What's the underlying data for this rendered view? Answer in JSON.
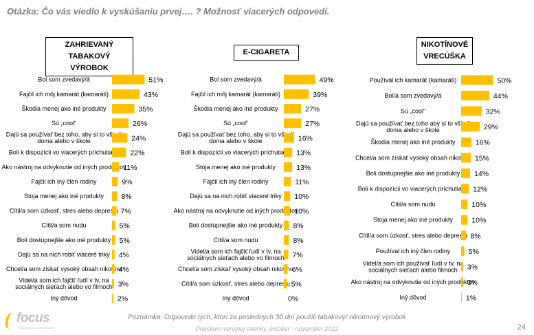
{
  "question": "Otázka: Čo vás viedlo k vyskúšaniu prvej…. ? Možnosť viacerých odpovedí.",
  "note": "Poznámka: Odpovede tých, ktorí za posledných 30 dní použili tabakový/ nikotínový výrobok",
  "source": "Prieskum verejnej mienky, október - november 2022",
  "page_number": "24",
  "logo": {
    "text": "focus",
    "subtext": "Marketing & Social Research"
  },
  "colors": {
    "bar": "#FFC000"
  },
  "chart_data": [
    {
      "type": "bar",
      "orientation": "horizontal",
      "title": "ZAHRIEVANÝ TABAKOVÝ VÝROBOK",
      "categories": [
        "Bol som zvedavý/á",
        "Fajčil ich môj kamarát (kamaráti)",
        "Škodia menej ako iné produkty",
        "Sú „cool“",
        "Dajú sa používať bez toho, aby si to všimli doma alebo v škole",
        "Boli k dispozícii vo viacerých príchutiach",
        "Ako nástroj na odvyknutie od iných produktov",
        "Fajčil ich iný člen rodiny",
        "Stoja menej ako iné produkty",
        "Cítil/a som úzkosť, stres alebo depresiu",
        "Cítil/a som nudu",
        "Boli dostupnejšie ako iné produkty",
        "Dajú sa na nich robiť viaceré triky",
        "Chcel/a som získať vysoký obsah nikotínu",
        "Videl/a som ich fajčiť ľudí v tv, na sociálnych sieťach alebo vo filmoch",
        "Iný dôvod"
      ],
      "values": [
        51,
        43,
        35,
        26,
        24,
        22,
        11,
        9,
        8,
        7,
        5,
        5,
        4,
        4,
        3,
        2
      ],
      "value_labels": [
        "51%",
        "43%",
        "35%",
        "26%",
        "24%",
        "22%",
        "11%",
        "9%",
        "8%",
        "7%",
        "5%",
        "5%",
        "4%",
        "4%",
        "3%",
        "2%"
      ],
      "xlim": [
        0,
        100
      ]
    },
    {
      "type": "bar",
      "orientation": "horizontal",
      "title": "E-CIGARETA",
      "categories": [
        "Bol som zvedavý/á",
        "Fajčil ich môj kamarát (kamaráti)",
        "Škodia menej ako iné produkty",
        "Sú „cool“",
        "Dajú sa používať bez toho, aby si to všimli doma alebo v škole",
        "Boli k dispozícii vo viacerých príchutiach",
        "Stoja menej ako iné produkty",
        "Fajčil ich iný člen rodiny",
        "Dajú sa na nich robiť viaceré triky",
        "Ako nástroj na odvyknutie od iných produktov",
        "Boli dostupnejšie ako iné produkty",
        "Cítil/a som nudu",
        "Videl/a som ich fajčiť ľudí v tv, na sociálnych sieťach alebo vo filmoch",
        "Chcel/a som získať vysoký obsah nikotínu",
        "Cítil/a som úzkosť, stres alebo depresiu",
        "Iný dôvod"
      ],
      "values": [
        49,
        39,
        27,
        27,
        16,
        13,
        13,
        11,
        10,
        10,
        8,
        8,
        7,
        6,
        5,
        0
      ],
      "value_labels": [
        "49%",
        "39%",
        "27%",
        "27%",
        "16%",
        "13%",
        "13%",
        "11%",
        "10%",
        "10%",
        "8%",
        "8%",
        "7%",
        "6%",
        "5%",
        "0%"
      ],
      "xlim": [
        0,
        100
      ]
    },
    {
      "type": "bar",
      "orientation": "horizontal",
      "title": "NIKOTÍNOVÉ VRECÚŠKA",
      "categories": [
        "Používal ich kamarát (kamaráti)",
        "Bol/a som zvedavý/á",
        "Sú „cool“",
        "Dajú sa používať bez toho aby si to všimli doma alebo v škole",
        "Škodia menej ako iné produkty",
        "Chcel/a som získať vysoký obsah nikotínu",
        "Boli dostupnejšie ako iné produkty",
        "Boli k dispozícii vo viacerých príchutiach",
        "Cítil/a som nudu",
        "Stoja menej ako iné produkty",
        "Cítil/a som úzkosť, stres alebo depresiu",
        "Používal ich iný člen rodiny",
        "Videl/a som ich používať ľudí v tv, na sociálnych sieťach alebo filmoch",
        "Ako nástroj na odvyknutie od iných produktov",
        "Iný dôvod"
      ],
      "values": [
        50,
        44,
        32,
        29,
        16,
        15,
        14,
        12,
        10,
        10,
        8,
        5,
        3,
        3,
        1
      ],
      "value_labels": [
        "50%",
        "44%",
        "32%",
        "29%",
        "16%",
        "15%",
        "14%",
        "12%",
        "10%",
        "10%",
        "8%",
        "5%",
        "3%",
        "3%",
        "1%"
      ],
      "xlim": [
        0,
        100
      ]
    }
  ]
}
